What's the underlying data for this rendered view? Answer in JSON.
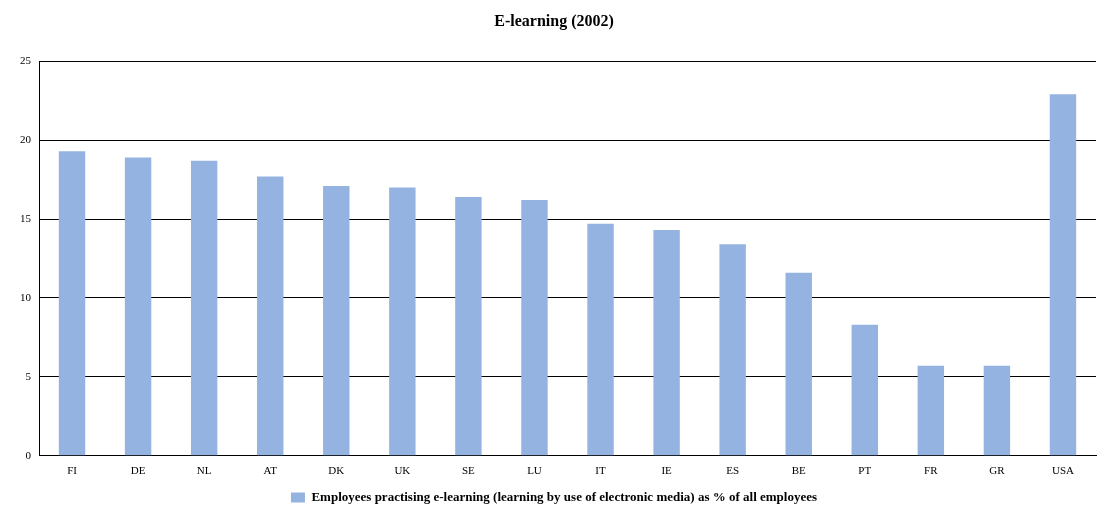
{
  "chart_data": {
    "type": "bar",
    "title": "E-learning (2002)",
    "categories": [
      "FI",
      "DE",
      "NL",
      "AT",
      "DK",
      "UK",
      "SE",
      "LU",
      "IT",
      "IE",
      "ES",
      "BE",
      "PT",
      "FR",
      "GR",
      "USA"
    ],
    "series": [
      {
        "name": "Employees practising e-learning (learning by use of electronic media) as % of all employees",
        "color": "#95b3e0",
        "values": [
          19.3,
          18.9,
          18.7,
          17.7,
          17.1,
          17.0,
          16.4,
          16.2,
          14.7,
          14.3,
          13.4,
          11.6,
          8.3,
          5.7,
          5.7,
          22.9
        ]
      }
    ],
    "ylim": [
      0,
      25
    ],
    "yticks": [
      0,
      5,
      10,
      15,
      20,
      25
    ],
    "grid": "y",
    "legend": "bottom"
  }
}
